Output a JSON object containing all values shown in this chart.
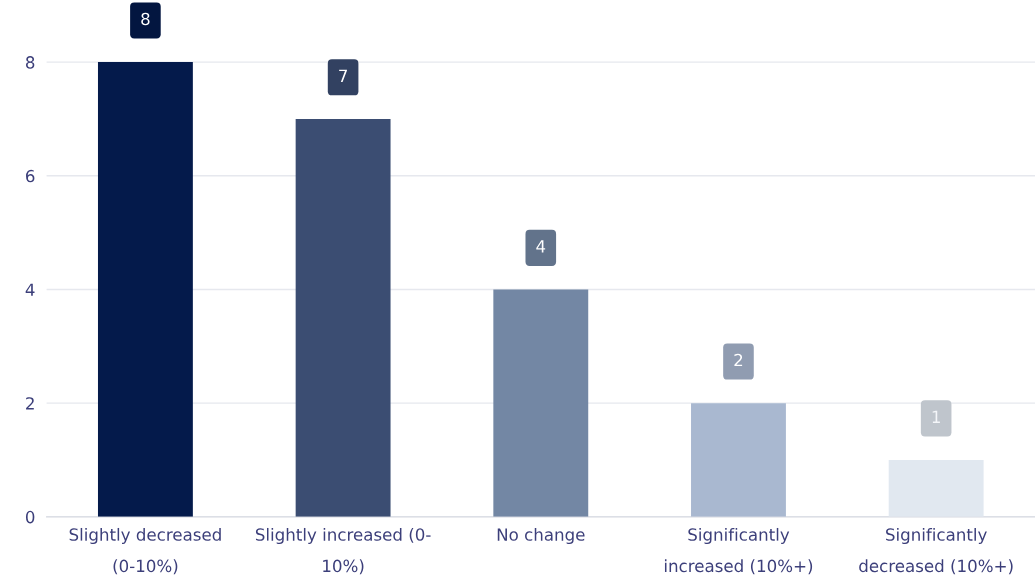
{
  "chart_data": {
    "type": "bar",
    "categories": [
      "Slightly decreased\n(0-10%)",
      "Slightly increased (0-\n10%)",
      "No change",
      "Significantly\nincreased (10%+)",
      "Significantly\ndecreased (10%+)"
    ],
    "values": [
      8,
      7,
      4,
      2,
      1
    ],
    "colors": [
      "#041a4b",
      "#3b4d72",
      "#7387a4",
      "#a9b8d0",
      "#e1e8f0"
    ],
    "ylim": [
      0,
      9
    ],
    "yticks": [
      0,
      2,
      4,
      6,
      8
    ],
    "grid": "y",
    "data_labels": true,
    "legend": false
  }
}
